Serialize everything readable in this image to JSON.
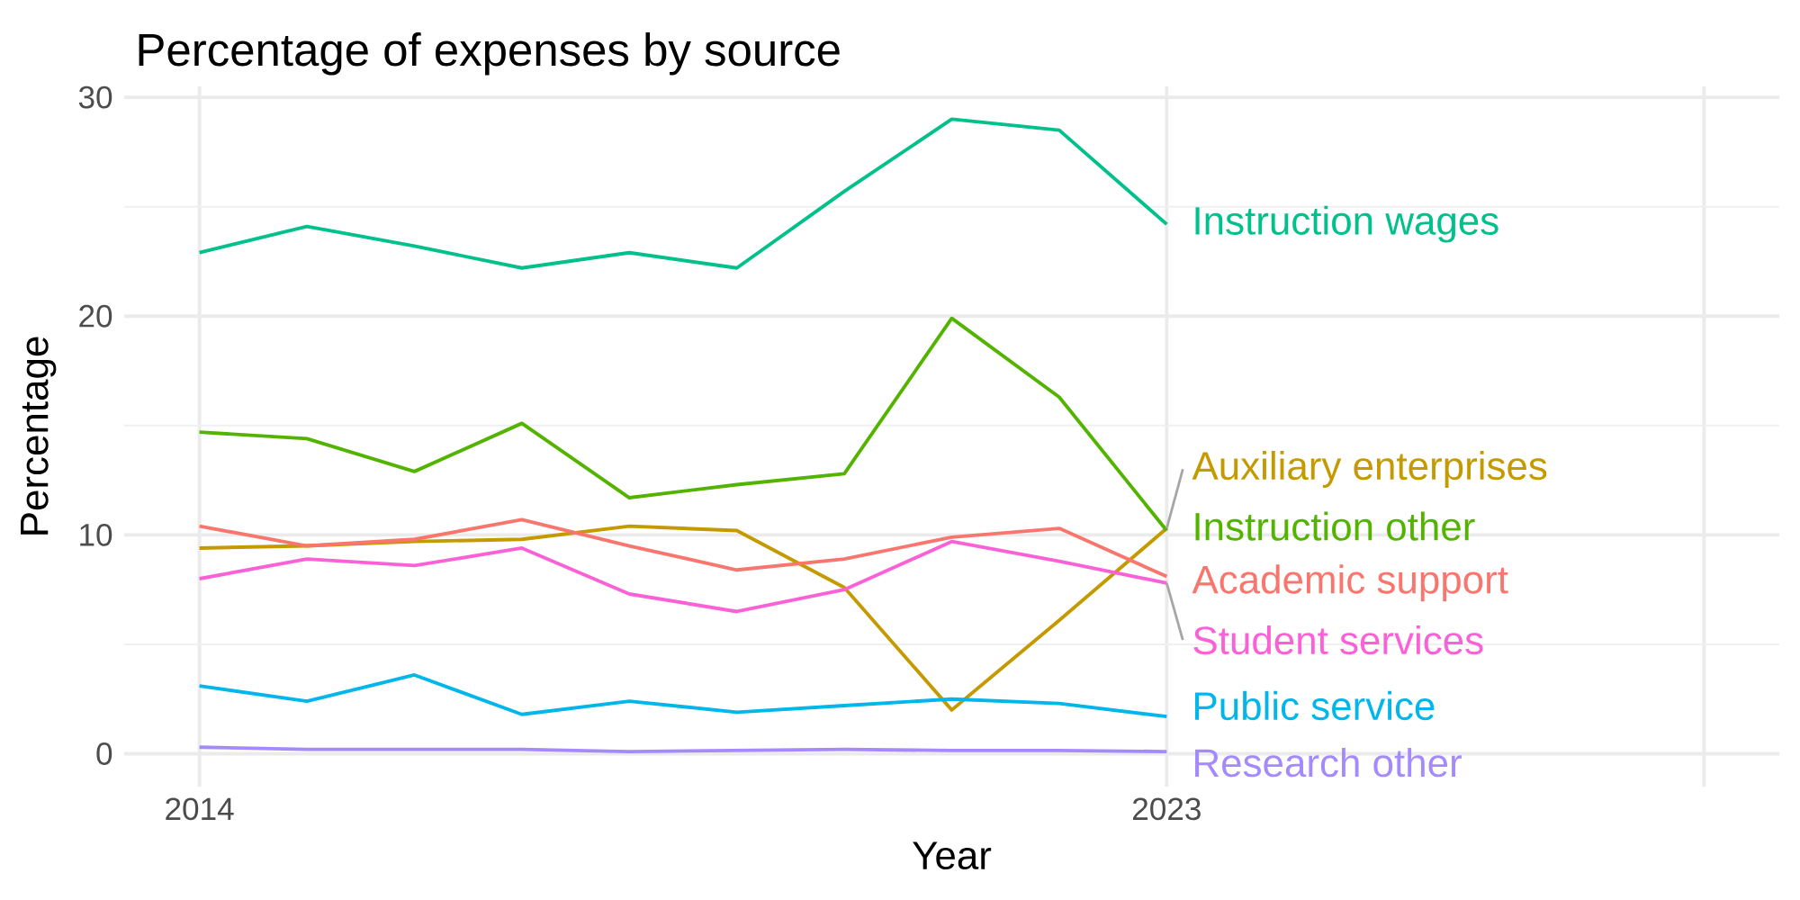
{
  "chart_data": {
    "type": "line",
    "title": "Percentage of expenses by source",
    "xlabel": "Year",
    "ylabel": "Percentage",
    "x": [
      2014,
      2015,
      2016,
      2017,
      2018,
      2019,
      2020,
      2021,
      2022,
      2023
    ],
    "series": [
      {
        "name": "Instruction wages",
        "color": "#00c08b",
        "values": [
          22.9,
          24.1,
          23.2,
          22.2,
          22.9,
          22.2,
          25.7,
          29.0,
          28.5,
          24.2
        ]
      },
      {
        "name": "Auxiliary enterprises",
        "color": "#c49a00",
        "values": [
          9.4,
          9.5,
          9.7,
          9.8,
          10.4,
          10.2,
          7.6,
          2.0,
          6.1,
          10.3
        ]
      },
      {
        "name": "Instruction other",
        "color": "#53b400",
        "values": [
          14.7,
          14.4,
          12.9,
          15.1,
          11.7,
          12.3,
          12.8,
          19.9,
          16.3,
          10.2
        ]
      },
      {
        "name": "Academic support",
        "color": "#f8766d",
        "values": [
          10.4,
          9.5,
          9.8,
          10.7,
          9.5,
          8.4,
          8.9,
          9.9,
          10.3,
          8.1
        ]
      },
      {
        "name": "Student services",
        "color": "#fb61d7",
        "values": [
          8.0,
          8.9,
          8.6,
          9.4,
          7.3,
          6.5,
          7.5,
          9.7,
          8.8,
          7.8
        ]
      },
      {
        "name": "Public service",
        "color": "#00b6eb",
        "values": [
          3.1,
          2.4,
          3.6,
          1.8,
          2.4,
          1.9,
          2.2,
          2.5,
          2.3,
          1.7
        ]
      },
      {
        "name": "Research other",
        "color": "#a58aff",
        "values": [
          0.3,
          0.2,
          0.2,
          0.2,
          0.1,
          0.15,
          0.2,
          0.15,
          0.15,
          0.1
        ]
      }
    ],
    "xlim": [
      2013.3,
      2028.7
    ],
    "xticks": [
      2014,
      2023,
      {
        "value": 2028,
        "label": null
      }
    ],
    "ylim": [
      -1.5,
      30.5
    ],
    "yticks": [
      0,
      10,
      20,
      30
    ],
    "grid": true,
    "legend": false,
    "marker": "none",
    "line_style": "solid"
  }
}
